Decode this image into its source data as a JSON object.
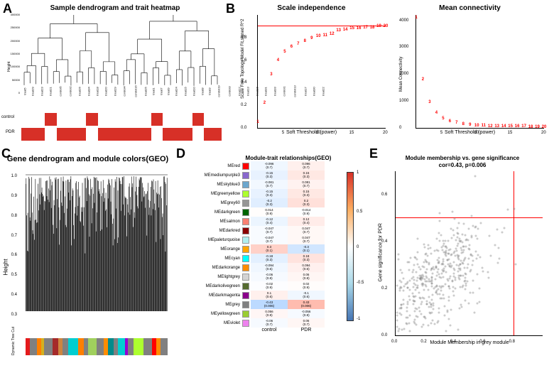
{
  "panelA": {
    "label": "A",
    "title": "Sample dendrogram and trait heatmap",
    "y_label": "Height",
    "y_ticks": [
      "0",
      "50000",
      "100000",
      "150000",
      "200000",
      "250000",
      "300000"
    ],
    "leaves": [
      "treat5",
      "treat29",
      "treat23",
      "treat21",
      "control5",
      "control2",
      "treat26",
      "treat34",
      "treat18",
      "treat20",
      "treat19",
      "control4",
      "control16",
      "treat25",
      "treat1",
      "treat7",
      "treat9",
      "treat24",
      "treat15",
      "treat10",
      "treat8",
      "treat3",
      "control19",
      "control3",
      "treat12",
      "treat13",
      "treat16",
      "treat31",
      "treat33",
      "control1",
      "control13",
      "treat17",
      "treat30",
      "treat22"
    ],
    "heat_labels": [
      "control",
      "PDR"
    ],
    "heat_control": [
      0,
      0,
      0,
      0,
      1,
      1,
      0,
      0,
      0,
      0,
      0,
      1,
      1,
      0,
      0,
      0,
      0,
      0,
      0,
      0,
      0,
      0,
      1,
      1,
      0,
      0,
      0,
      0,
      0,
      1,
      1,
      0,
      0,
      0
    ],
    "heat_pdr": [
      1,
      1,
      1,
      1,
      0,
      0,
      1,
      1,
      1,
      1,
      1,
      0,
      0,
      1,
      1,
      1,
      1,
      1,
      1,
      1,
      1,
      1,
      0,
      0,
      1,
      1,
      1,
      1,
      1,
      0,
      0,
      1,
      1,
      1
    ],
    "color_on": "#d73027",
    "color_off": "#ffffff"
  },
  "panelB": {
    "label": "B",
    "scale_ind": {
      "title": "Scale independence",
      "xlab": "Soft Threshold (power)",
      "ylab": "Scale Free Topology Model Fit,signed R^2",
      "xlim": [
        1,
        20
      ],
      "ylim": [
        0,
        1
      ],
      "xticks": [
        5,
        10,
        15,
        20
      ],
      "yticks": [
        "0.0",
        "0.2",
        "0.4",
        "0.6",
        "0.8"
      ],
      "hline_y": 0.9,
      "pts": [
        [
          1,
          0.05
        ],
        [
          2,
          0.22
        ],
        [
          3,
          0.47
        ],
        [
          4,
          0.6
        ],
        [
          5,
          0.67
        ],
        [
          6,
          0.72
        ],
        [
          7,
          0.74
        ],
        [
          8,
          0.77
        ],
        [
          9,
          0.79
        ],
        [
          10,
          0.81
        ],
        [
          11,
          0.82
        ],
        [
          12,
          0.83
        ],
        [
          13,
          0.86
        ],
        [
          14,
          0.87
        ],
        [
          15,
          0.88
        ],
        [
          16,
          0.88
        ],
        [
          17,
          0.89
        ],
        [
          18,
          0.89
        ],
        [
          19,
          0.9
        ],
        [
          20,
          0.9
        ]
      ],
      "ptcolor": "#ff0000"
    },
    "mean_conn": {
      "title": "Mean connectivity",
      "xlab": "Soft Threshold (power)",
      "ylab": "Mean Connectivity",
      "xlim": [
        1,
        20
      ],
      "ylim": [
        0,
        4200
      ],
      "xticks": [
        5,
        10,
        15,
        20
      ],
      "yticks": [
        "0",
        "1000",
        "2000",
        "3000",
        "4000"
      ],
      "pts": [
        [
          1,
          4100
        ],
        [
          2,
          1800
        ],
        [
          3,
          950
        ],
        [
          4,
          550
        ],
        [
          5,
          350
        ],
        [
          6,
          250
        ],
        [
          7,
          180
        ],
        [
          8,
          140
        ],
        [
          9,
          110
        ],
        [
          10,
          90
        ],
        [
          11,
          75
        ],
        [
          12,
          65
        ],
        [
          13,
          58
        ],
        [
          14,
          52
        ],
        [
          15,
          48
        ],
        [
          16,
          44
        ],
        [
          17,
          41
        ],
        [
          18,
          38
        ],
        [
          19,
          36
        ],
        [
          20,
          34
        ]
      ],
      "ptcolor": "#ff0000"
    }
  },
  "panelC": {
    "label": "C",
    "title": "Gene dendrogram and module colors(GEO)",
    "y_label": "Height",
    "yticks": [
      "0.3",
      "0.4",
      "0.5",
      "0.6",
      "0.7",
      "0.8",
      "0.9",
      "1.0"
    ],
    "ylim": [
      0.3,
      1.0
    ],
    "bar_label": "Dynamic Tree Cut",
    "color_bar": [
      {
        "c": "#e41a1c",
        "w": 3
      },
      {
        "c": "#808080",
        "w": 5
      },
      {
        "c": "#ff7f00",
        "w": 3
      },
      {
        "c": "#d4b020",
        "w": 2
      },
      {
        "c": "#808080",
        "w": 6
      },
      {
        "c": "#a52a2a",
        "w": 4
      },
      {
        "c": "#cd853f",
        "w": 3
      },
      {
        "c": "#808080",
        "w": 4
      },
      {
        "c": "#00ced1",
        "w": 7
      },
      {
        "c": "#ff7f00",
        "w": 4
      },
      {
        "c": "#808080",
        "w": 3
      },
      {
        "c": "#a0d05d",
        "w": 6
      },
      {
        "c": "#808080",
        "w": 5
      },
      {
        "c": "#ff8c00",
        "w": 3
      },
      {
        "c": "#008b8b",
        "w": 4
      },
      {
        "c": "#808080",
        "w": 3
      },
      {
        "c": "#00ced1",
        "w": 5
      },
      {
        "c": "#9400d3",
        "w": 2
      },
      {
        "c": "#808080",
        "w": 4
      },
      {
        "c": "#adff2f",
        "w": 7
      },
      {
        "c": "#808080",
        "w": 6
      },
      {
        "c": "#ff0000",
        "w": 3
      },
      {
        "c": "#ff8c00",
        "w": 3
      },
      {
        "c": "#808080",
        "w": 5
      }
    ]
  },
  "panelD": {
    "label": "D",
    "title": "Module-trait relationships(GEO)",
    "x_labels": [
      "control",
      "PDR"
    ],
    "colorscale_labels": [
      "1",
      "0.5",
      "0",
      "-0.5",
      "-1"
    ],
    "modules": [
      {
        "name": "MEred",
        "swatch": "#ff0000",
        "cells": [
          {
            "v": "-0.096",
            "p": "(0.7)"
          },
          {
            "v": "0.096",
            "p": "(0.7)"
          }
        ]
      },
      {
        "name": "MEmediumpurple3",
        "swatch": "#8968cd",
        "cells": [
          {
            "v": "-0.15",
            "p": "(0.3)"
          },
          {
            "v": "0.15",
            "p": "(0.3)"
          }
        ]
      },
      {
        "name": "MEskyblue3",
        "swatch": "#6ca6cd",
        "cells": [
          {
            "v": "-0.081",
            "p": "(0.7)"
          },
          {
            "v": "0.081",
            "p": "(0.7)"
          }
        ]
      },
      {
        "name": "MEgreenyellow",
        "swatch": "#adff2f",
        "cells": [
          {
            "v": "-0.15",
            "p": "(0.3)"
          },
          {
            "v": "0.15",
            "p": "(0.3)"
          }
        ]
      },
      {
        "name": "MEgrey60",
        "swatch": "#969696",
        "cells": [
          {
            "v": "-0.2",
            "p": "(0.3)"
          },
          {
            "v": "0.2",
            "p": "(0.3)"
          }
        ]
      },
      {
        "name": "MEdarkgreen",
        "swatch": "#006400",
        "cells": [
          {
            "v": "0.014",
            "p": "(0.9)"
          },
          {
            "v": "-0.014",
            "p": "(0.9)"
          }
        ]
      },
      {
        "name": "MEsalmon",
        "swatch": "#fa8072",
        "cells": [
          {
            "v": "-0.12",
            "p": "(0.4)"
          },
          {
            "v": "0.12",
            "p": "(0.4)"
          }
        ]
      },
      {
        "name": "MEdarkred",
        "swatch": "#8b0000",
        "cells": [
          {
            "v": "-0.047",
            "p": "(0.7)"
          },
          {
            "v": "0.047",
            "p": "(0.7)"
          }
        ]
      },
      {
        "name": "MEpaleturquoise",
        "swatch": "#afeeee",
        "cells": [
          {
            "v": "-0.047",
            "p": "(0.7)"
          },
          {
            "v": "0.047",
            "p": "(0.7)"
          }
        ]
      },
      {
        "name": "MEorange",
        "swatch": "#ffa500",
        "cells": [
          {
            "v": "0.3",
            "p": "(0.1)"
          },
          {
            "v": "-0.3",
            "p": "(0.1)"
          }
        ]
      },
      {
        "name": "MEcyan",
        "swatch": "#00ffff",
        "cells": [
          {
            "v": "-0.18",
            "p": "(0.3)"
          },
          {
            "v": "0.18",
            "p": "(0.3)"
          }
        ]
      },
      {
        "name": "MEdarkorange",
        "swatch": "#ff8c00",
        "cells": [
          {
            "v": "-0.094",
            "p": "(0.6)"
          },
          {
            "v": "0.094",
            "p": "(0.6)"
          }
        ]
      },
      {
        "name": "MElightgrey",
        "swatch": "#d3d3d3",
        "cells": [
          {
            "v": "-0.06",
            "p": "(0.8)"
          },
          {
            "v": "0.06",
            "p": "(0.8)"
          }
        ]
      },
      {
        "name": "MEdarkolivegreen",
        "swatch": "#556b2f",
        "cells": [
          {
            "v": "-0.02",
            "p": "(0.9)"
          },
          {
            "v": "0.02",
            "p": "(0.9)"
          }
        ]
      },
      {
        "name": "MEdarkmagenta",
        "swatch": "#8b008b",
        "cells": [
          {
            "v": "0.1",
            "p": "(0.6)"
          },
          {
            "v": "-0.1",
            "p": "(0.6)"
          }
        ]
      },
      {
        "name": "MEgrey",
        "swatch": "#808080",
        "cells": [
          {
            "v": "-0.43",
            "p": "(0.006)"
          },
          {
            "v": "0.43",
            "p": "(0.006)"
          }
        ]
      },
      {
        "name": "MEyellowgreen",
        "swatch": "#9acd32",
        "cells": [
          {
            "v": "0.056",
            "p": "(0.8)"
          },
          {
            "v": "-0.056",
            "p": "(0.8)"
          }
        ]
      },
      {
        "name": "MEviolet",
        "swatch": "#ee82ee",
        "cells": [
          {
            "v": "-0.06",
            "p": "(0.7)"
          },
          {
            "v": "0.06",
            "p": "(0.7)"
          }
        ]
      }
    ]
  },
  "panelE": {
    "label": "E",
    "title1": "Module membership vs. gene significance",
    "title2": "cor=0.43, p=0.006",
    "xlab": "Module Membership in grey module",
    "ylab": "Gene significance for PDR",
    "xlim": [
      0,
      1
    ],
    "ylim": [
      0,
      0.7
    ],
    "xticks": [
      "0.0",
      "0.2",
      "0.4",
      "0.6",
      "0.8"
    ],
    "yticks": [
      "0.0",
      "0.2",
      "0.4",
      "0.6"
    ],
    "hline_y": 0.5,
    "vline_x": 0.8,
    "n_points": 450,
    "dot_color": "rgba(110,110,110,0.35)"
  }
}
